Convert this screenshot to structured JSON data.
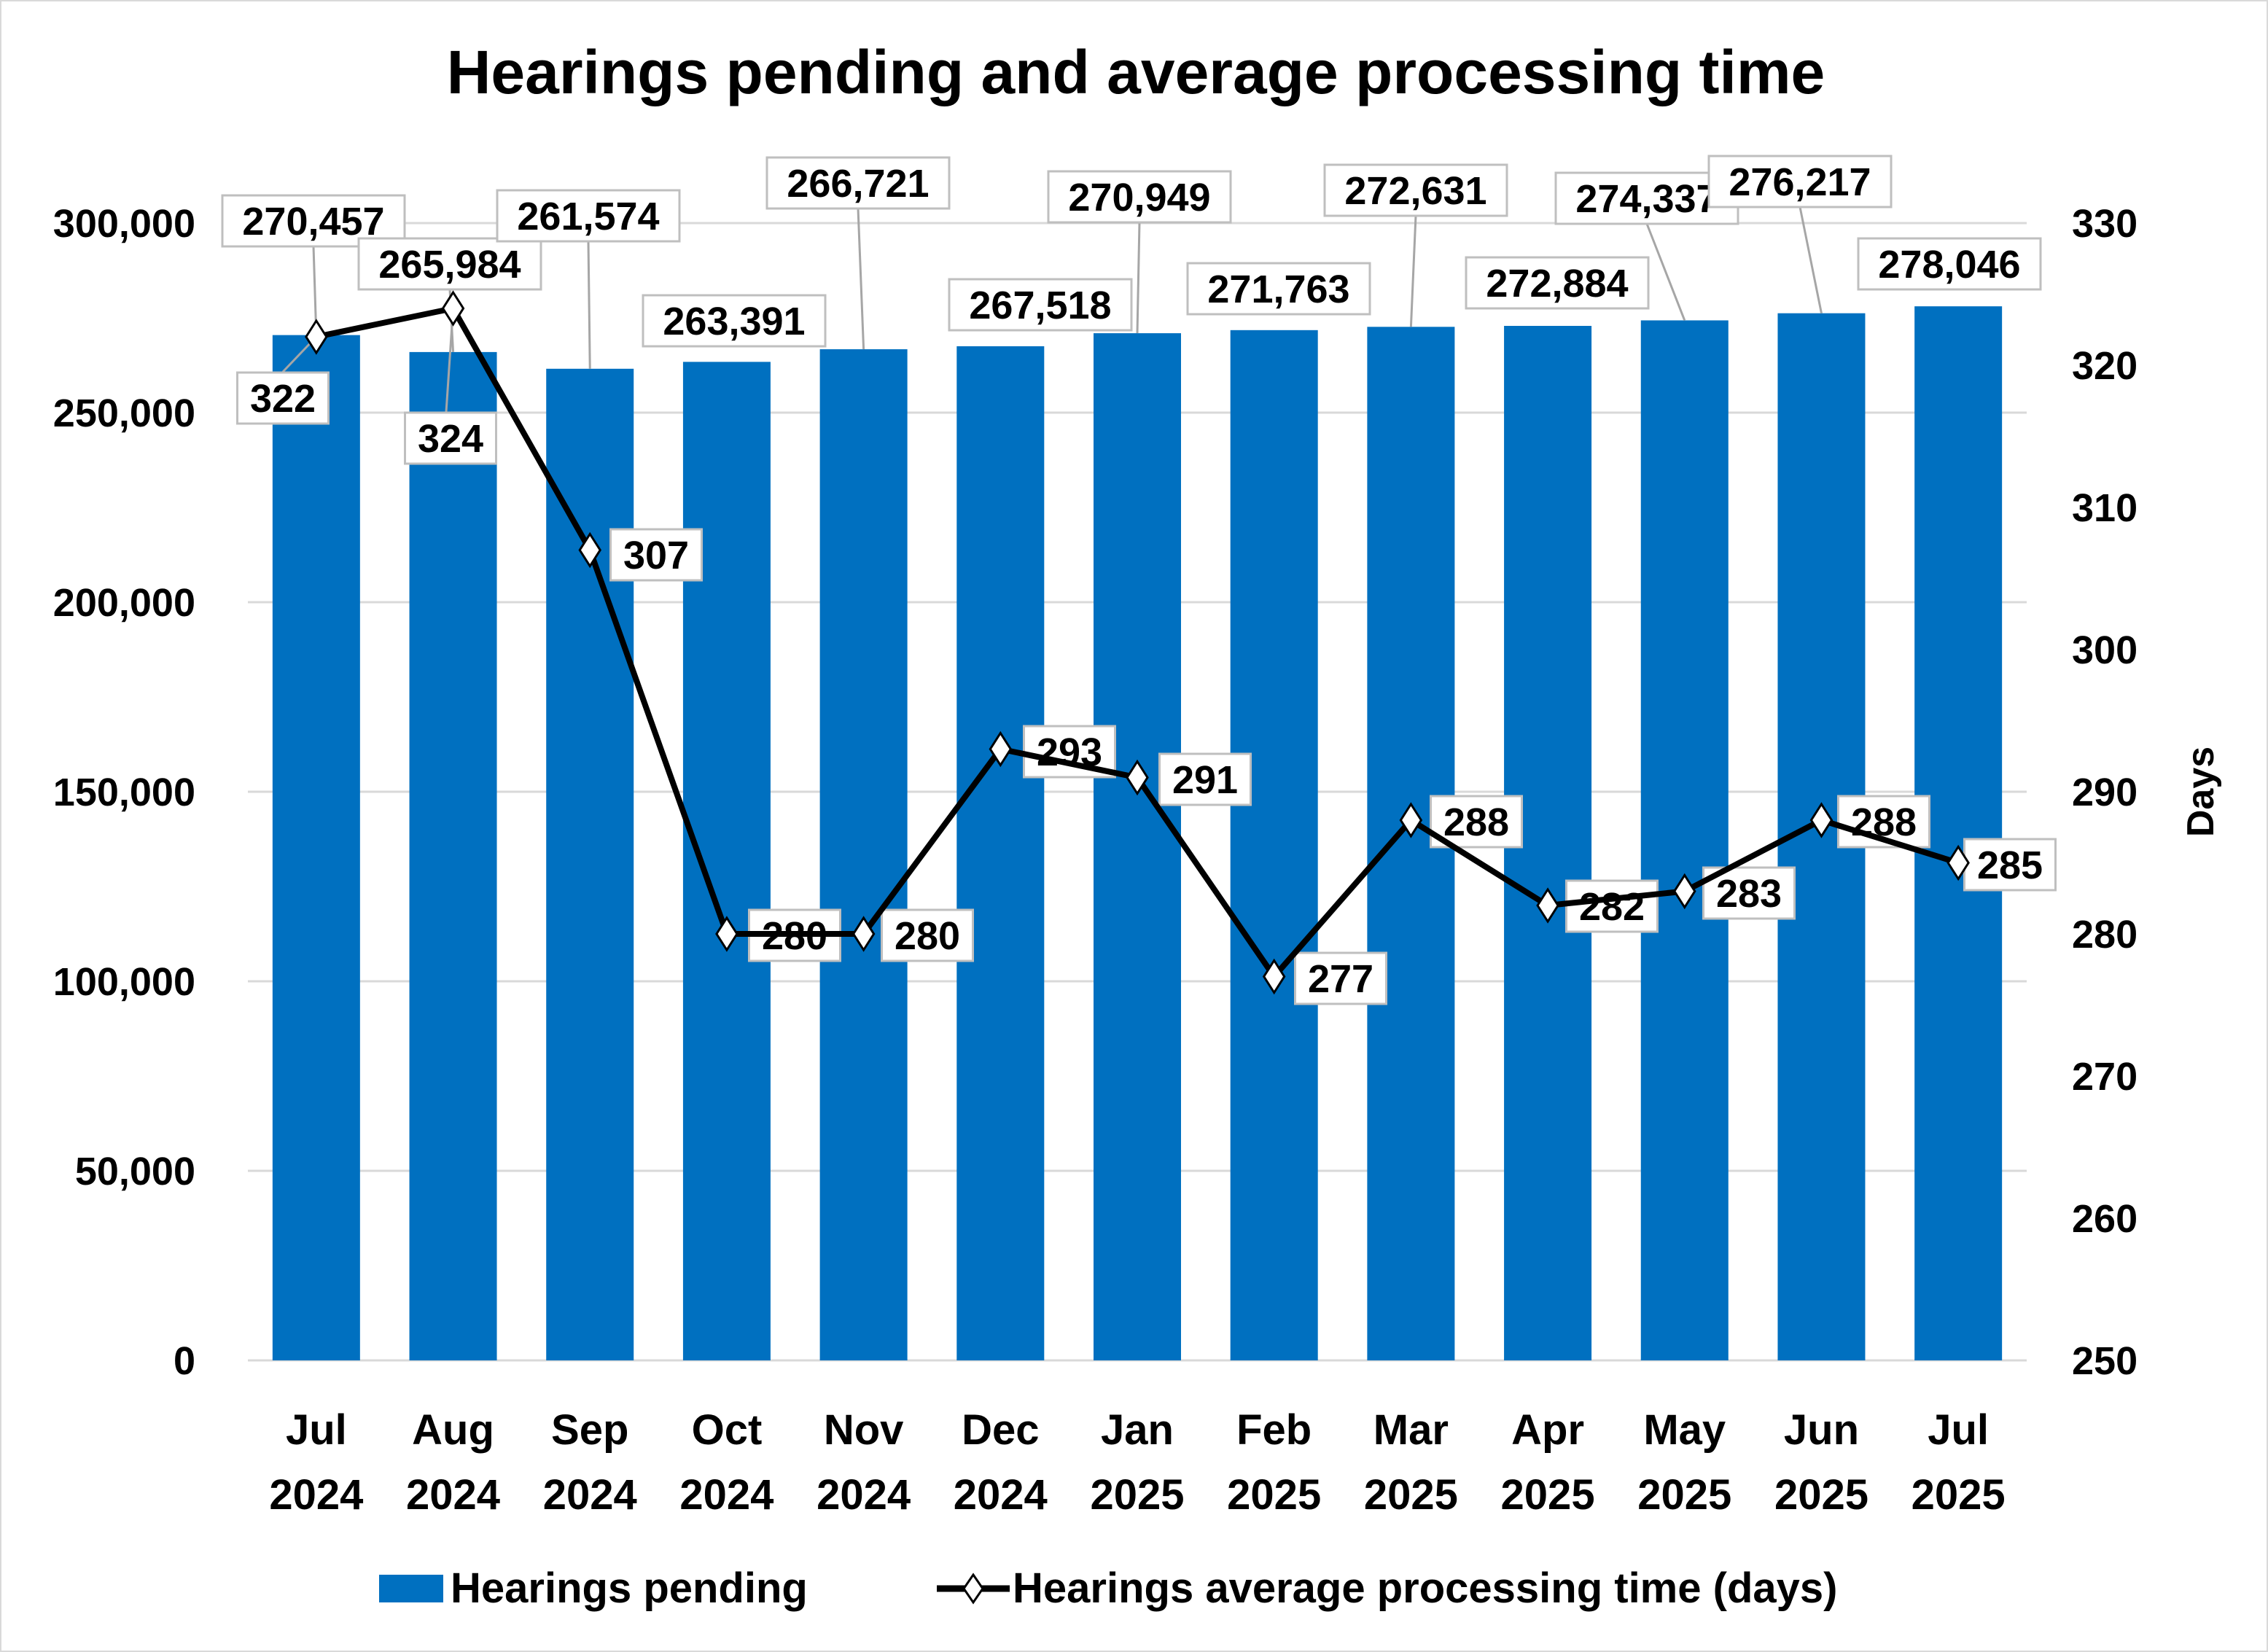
{
  "chart_data": {
    "type": "bar",
    "title": "Hearings pending and average processing time",
    "categories": [
      [
        "Jul",
        "2024"
      ],
      [
        "Aug",
        "2024"
      ],
      [
        "Sep",
        "2024"
      ],
      [
        "Oct",
        "2024"
      ],
      [
        "Nov",
        "2024"
      ],
      [
        "Dec",
        "2024"
      ],
      [
        "Jan",
        "2025"
      ],
      [
        "Feb",
        "2025"
      ],
      [
        "Mar",
        "2025"
      ],
      [
        "Apr",
        "2025"
      ],
      [
        "May",
        "2025"
      ],
      [
        "Jun",
        "2025"
      ],
      [
        "Jul",
        "2025"
      ]
    ],
    "series": [
      {
        "name": "Hearings pending",
        "type": "bar",
        "axis": "left",
        "color": "#0070c0",
        "values": [
          270457,
          265984,
          261574,
          263391,
          266721,
          267518,
          270949,
          271763,
          272631,
          272884,
          274337,
          276217,
          278046
        ],
        "labels": [
          "270,457",
          "265,984",
          "261,574",
          "263,391",
          "266,721",
          "267,518",
          "270,949",
          "271,763",
          "272,631",
          "272,884",
          "274,337",
          "276,217",
          "278,046"
        ]
      },
      {
        "name": "Hearings average processing time (days)",
        "type": "line",
        "axis": "right",
        "color": "#000000",
        "marker": "diamond",
        "values": [
          322,
          324,
          307,
          280,
          280,
          293,
          291,
          277,
          288,
          282,
          283,
          288,
          285
        ],
        "labels": [
          "322",
          "324",
          "307",
          "280",
          "280",
          "293",
          "291",
          "277",
          "288",
          "282",
          "283",
          "288",
          "285"
        ]
      }
    ],
    "y_left": {
      "label": "",
      "ylim": [
        0,
        300000
      ],
      "ticks": [
        0,
        50000,
        100000,
        150000,
        200000,
        250000,
        300000
      ],
      "tick_labels": [
        "0",
        "50,000",
        "100,000",
        "150,000",
        "200,000",
        "250,000",
        "300,000"
      ]
    },
    "y_right": {
      "label": "Days",
      "ylim": [
        250,
        330
      ],
      "ticks": [
        250,
        260,
        270,
        280,
        290,
        300,
        310,
        320,
        330
      ],
      "tick_labels": [
        "250",
        "260",
        "270",
        "280",
        "290",
        "300",
        "310",
        "320",
        "330"
      ]
    },
    "grid": true,
    "legend": {
      "placement": "bottom",
      "entries": [
        "Hearings pending",
        "Hearings average processing time (days)"
      ]
    }
  }
}
